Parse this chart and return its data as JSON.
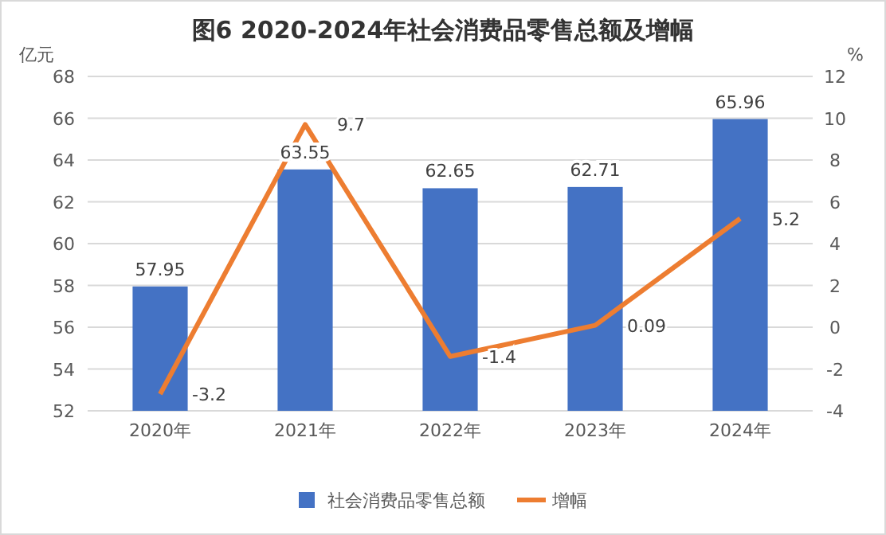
{
  "chart_data": {
    "type": "bar",
    "title": "图6 2020-2024年社会消费品零售总额及增幅",
    "ylabel": "亿元",
    "y2label": "%",
    "categories": [
      "2020年",
      "2021年",
      "2022年",
      "2023年",
      "2024年"
    ],
    "series": [
      {
        "name": "社会消费品零售总额",
        "color": "#4472c4",
        "values": [
          57.95,
          63.55,
          62.65,
          62.71,
          65.96
        ]
      },
      {
        "name": "增幅",
        "type": "line",
        "axis": "y2",
        "color": "#ed7d31",
        "values": [
          -3.2,
          9.7,
          -1.4,
          0.09,
          5.2
        ]
      }
    ],
    "ylim": [
      52,
      68
    ],
    "yticks": [
      52,
      54,
      56,
      58,
      60,
      62,
      64,
      66,
      68
    ],
    "y2lim": [
      -4,
      12
    ],
    "y2ticks": [
      -4,
      -2,
      0,
      2,
      4,
      6,
      8,
      10,
      12
    ],
    "grid": "y",
    "legend": "bottom",
    "data_labels": true,
    "marker": "none"
  }
}
